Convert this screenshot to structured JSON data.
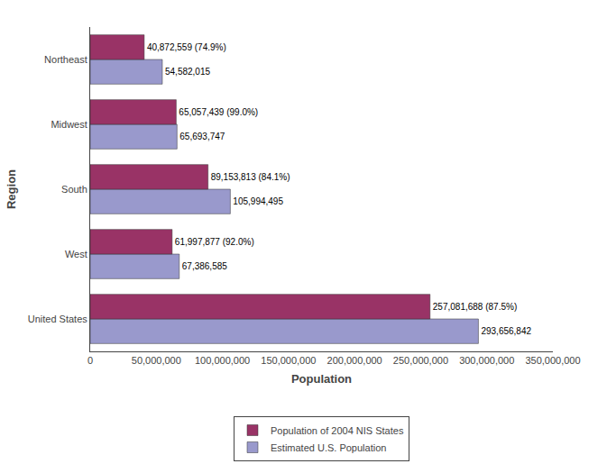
{
  "chart_data": {
    "type": "bar",
    "orientation": "horizontal",
    "categories": [
      "United States",
      "West",
      "South",
      "Midwest",
      "Northeast"
    ],
    "series": [
      {
        "name": "Population of 2004 NIS States",
        "color": "#993366",
        "values": [
          257081688,
          61997877,
          89153813,
          65057439,
          40872559
        ],
        "value_labels": [
          "257,081,688 (87.5%)",
          "61,997,877 (92.0%)",
          "89,153,813 (84.1%)",
          "65,057,439 (99.0%)",
          "40,872,559 (74.9%)"
        ]
      },
      {
        "name": "Estimated U.S. Population",
        "color": "#9999CC",
        "values": [
          293656842,
          67386585,
          105994495,
          65693747,
          54582015
        ],
        "value_labels": [
          "293,656,842",
          "67,386,585",
          "105,994,495",
          "65,693,747",
          "54,582,015"
        ]
      }
    ],
    "xlabel": "Population",
    "ylabel": "Region",
    "xlim": [
      0,
      350000000
    ],
    "xticks": [
      0,
      {
        "value": 50000000,
        "label": "50,000,000"
      },
      {
        "value": 100000000,
        "label": "100,000,000"
      },
      {
        "value": 150000000,
        "label": "150,000,000"
      },
      {
        "value": 200000000,
        "label": "200,000,000"
      },
      {
        "value": 250000000,
        "label": "250,000,000"
      },
      {
        "value": 300000000,
        "label": "300,000,000"
      },
      {
        "value": 350000000,
        "label": "350,000,000"
      }
    ],
    "data_labels": true,
    "grid": false,
    "legend": "bottom"
  }
}
